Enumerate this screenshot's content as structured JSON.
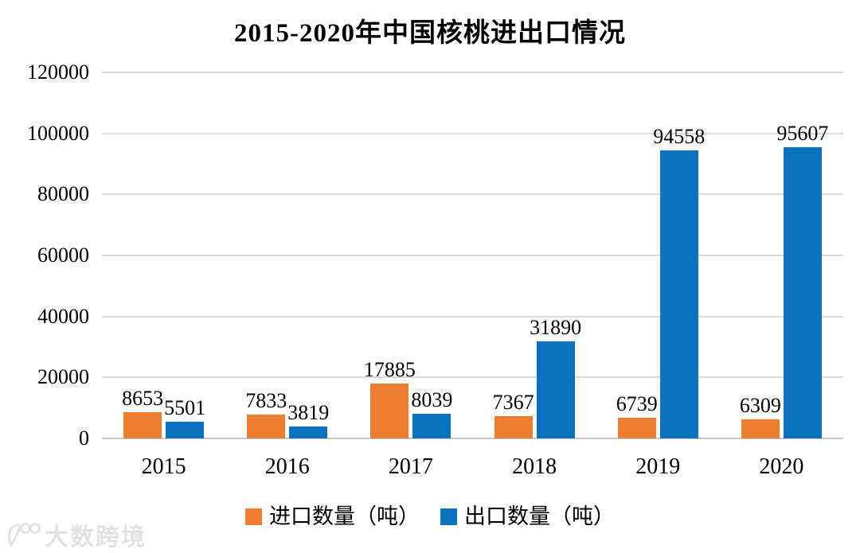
{
  "chart_data": {
    "type": "bar",
    "title": "2015-2020年中国核桃进出口情况",
    "categories": [
      "2015",
      "2016",
      "2017",
      "2018",
      "2019",
      "2020"
    ],
    "series": [
      {
        "name": "进口数量（吨）",
        "color": "#ED7D31",
        "values": [
          8653,
          7833,
          17885,
          7367,
          6739,
          6309
        ]
      },
      {
        "name": "出口数量（吨）",
        "color": "#0B72BE",
        "values": [
          5501,
          3819,
          8039,
          31890,
          94558,
          95607
        ]
      }
    ],
    "xlabel": "",
    "ylabel": "",
    "ylim": [
      0,
      120000
    ],
    "ytick_interval": 20000,
    "ytick_labels": [
      "120000",
      "100000",
      "80000",
      "60000",
      "40000",
      "20000",
      "0"
    ],
    "grid": true,
    "data_labels": true,
    "legend_position": "bottom"
  },
  "watermark": {
    "text": "大数跨境"
  },
  "colors": {
    "gridline": "#d9d9d9",
    "axisline": "#c6c6c6",
    "label_text": "#000000",
    "watermark": "#e2e2e2"
  }
}
